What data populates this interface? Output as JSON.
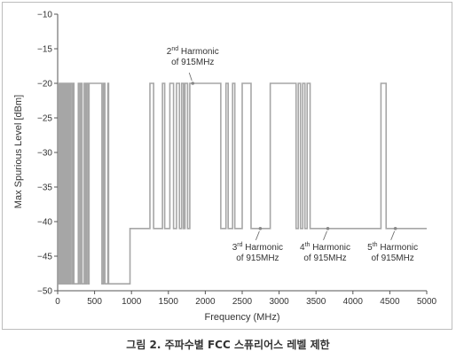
{
  "chart_data": {
    "type": "line",
    "xlabel": "Frequency (MHz)",
    "ylabel": "Max Spurious Level [dBm]",
    "xlim": [
      0,
      5000
    ],
    "ylim": [
      -50,
      -10
    ],
    "xticks": [
      0,
      500,
      1000,
      1500,
      2000,
      2500,
      3000,
      3500,
      4000,
      4500,
      5000
    ],
    "yticks": [
      -10,
      -15,
      -20,
      -25,
      -30,
      -35,
      -40,
      -45,
      -50
    ],
    "grid": false,
    "series": [
      {
        "color": "#a6a6a6",
        "x": [
          0,
          20,
          20,
          30,
          30,
          45,
          45,
          60,
          60,
          75,
          75,
          90,
          90,
          105,
          105,
          120,
          120,
          135,
          135,
          150,
          150,
          165,
          165,
          180,
          180,
          200,
          200,
          210,
          210,
          220,
          220,
          280,
          280,
          300,
          300,
          310,
          310,
          330,
          330,
          360,
          360,
          375,
          375,
          390,
          390,
          410,
          410,
          425,
          425,
          600,
          600,
          620,
          620,
          640,
          640,
          680,
          680,
          690,
          690,
          980,
          980,
          1250,
          1250,
          1300,
          1300,
          1420,
          1420,
          1450,
          1450,
          1520,
          1520,
          1570,
          1570,
          1610,
          1610,
          1650,
          1650,
          1680,
          1680,
          1705,
          1705,
          1725,
          1725,
          1760,
          1760,
          1790,
          1790,
          2210,
          2210,
          2280,
          2280,
          2310,
          2310,
          2370,
          2370,
          2400,
          2400,
          2500,
          2500,
          2620,
          2620,
          2880,
          2880,
          3230,
          3230,
          3260,
          3260,
          3290,
          3290,
          3320,
          3320,
          3350,
          3350,
          3380,
          3380,
          3420,
          3420,
          4380,
          4380,
          4450,
          4450,
          5000
        ],
        "y": [
          -20,
          -20,
          -49,
          -49,
          -20,
          -20,
          -49,
          -49,
          -20,
          -20,
          -49,
          -49,
          -20,
          -20,
          -49,
          -49,
          -20,
          -20,
          -49,
          -49,
          -20,
          -20,
          -49,
          -49,
          -20,
          -20,
          -49,
          -49,
          -20,
          -20,
          -49,
          -49,
          -20,
          -20,
          -49,
          -49,
          -20,
          -20,
          -49,
          -49,
          -20,
          -20,
          -49,
          -49,
          -20,
          -20,
          -49,
          -49,
          -20,
          -20,
          -49,
          -49,
          -20,
          -20,
          -49,
          -49,
          -20,
          -20,
          -49,
          -49,
          -41,
          -41,
          -20,
          -20,
          -41,
          -41,
          -20,
          -20,
          -41,
          -41,
          -20,
          -20,
          -41,
          -41,
          -20,
          -20,
          -41,
          -41,
          -20,
          -20,
          -41,
          -41,
          -20,
          -20,
          -41,
          -41,
          -20,
          -20,
          -41,
          -41,
          -20,
          -20,
          -41,
          -41,
          -20,
          -20,
          -41,
          -41,
          -20,
          -20,
          -41,
          -41,
          -20,
          -20,
          -41,
          -41,
          -20,
          -20,
          -41,
          -41,
          -20,
          -20,
          -41,
          -41,
          -20,
          -20,
          -41,
          -41,
          -20,
          -20,
          -41,
          -41
        ]
      }
    ],
    "annotations": [
      {
        "x": 1830,
        "y": -20,
        "label_sup": "nd",
        "line1_pre": "2",
        "line1_post": " Harmonic",
        "line2": "of 915MHz"
      },
      {
        "x": 2745,
        "y": -41,
        "label_sup": "rd",
        "line1_pre": "3",
        "line1_post": " Harmonic",
        "line2": "of 915MHz"
      },
      {
        "x": 3660,
        "y": -41,
        "label_sup": "th",
        "line1_pre": "4",
        "line1_post": " Harmonic",
        "line2": "of 915MHz"
      },
      {
        "x": 4575,
        "y": -41,
        "label_sup": "th",
        "line1_pre": "5",
        "line1_post": " Harmonic",
        "line2": "of 915MHz"
      }
    ]
  },
  "caption": "그림 2. 주파수별 FCC 스퓨리어스 레벨 제한"
}
